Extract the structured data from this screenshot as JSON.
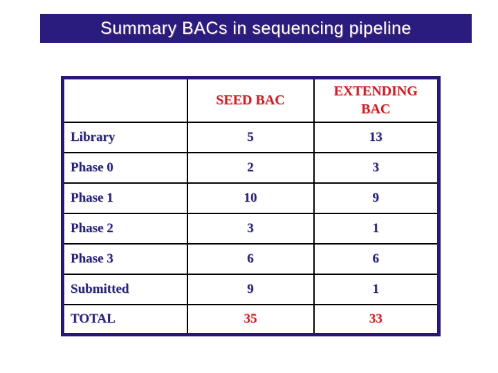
{
  "slide": {
    "title": "Summary BACs in sequencing pipeline",
    "colors": {
      "banner_background": "#2a1b7e",
      "banner_text": "#ffffff",
      "table_outer_border": "#2a1578",
      "table_inner_grid": "#000000",
      "label_text": "#28237e",
      "header_text": "#cc2128",
      "total_value_text": "#cc2128",
      "page_background": "#ffffff"
    }
  },
  "table": {
    "columns": {
      "label": "",
      "seed": "SEED BAC",
      "extending": "EXTENDING BAC"
    },
    "rows": [
      {
        "label": "Library",
        "seed": "5",
        "extending": "13"
      },
      {
        "label": "Phase 0",
        "seed": "2",
        "extending": "3"
      },
      {
        "label": "Phase 1",
        "seed": "10",
        "extending": "9"
      },
      {
        "label": "Phase 2",
        "seed": "3",
        "extending": "1"
      },
      {
        "label": "Phase 3",
        "seed": "6",
        "extending": "6"
      },
      {
        "label": "Submitted",
        "seed": "9",
        "extending": "1"
      },
      {
        "label": "TOTAL",
        "seed": "35",
        "extending": "33"
      }
    ]
  }
}
